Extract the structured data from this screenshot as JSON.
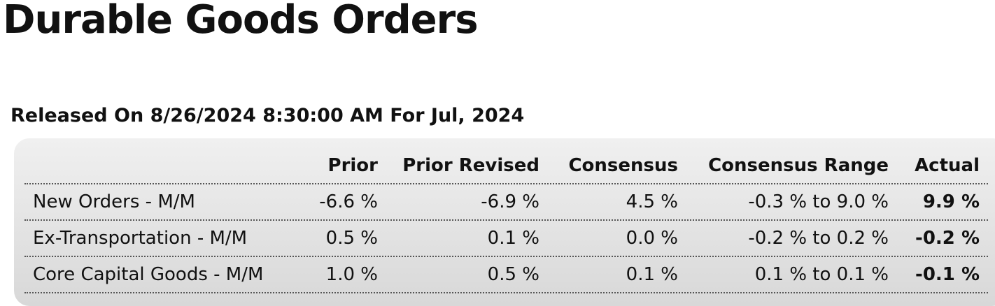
{
  "header": {
    "title": "Durable Goods Orders",
    "release": "Released On 8/26/2024 8:30:00 AM For Jul, 2024"
  },
  "table": {
    "columns": [
      "",
      "Prior",
      "Prior Revised",
      "Consensus",
      "Consensus Range",
      "Actual"
    ],
    "rows": [
      [
        "New Orders - M/M",
        "-6.6 %",
        "-6.9 %",
        "4.5 %",
        "-0.3 % to 9.0 %",
        "9.9 %"
      ],
      [
        "Ex-Transportation - M/M",
        "0.5 %",
        "0.1 %",
        "0.0 %",
        "-0.2 % to 0.2 %",
        "-0.2 %"
      ],
      [
        "Core Capital Goods - M/M",
        "1.0 %",
        "0.5 %",
        "0.1 %",
        "0.1 % to 0.1 %",
        "-0.1 %"
      ]
    ]
  }
}
